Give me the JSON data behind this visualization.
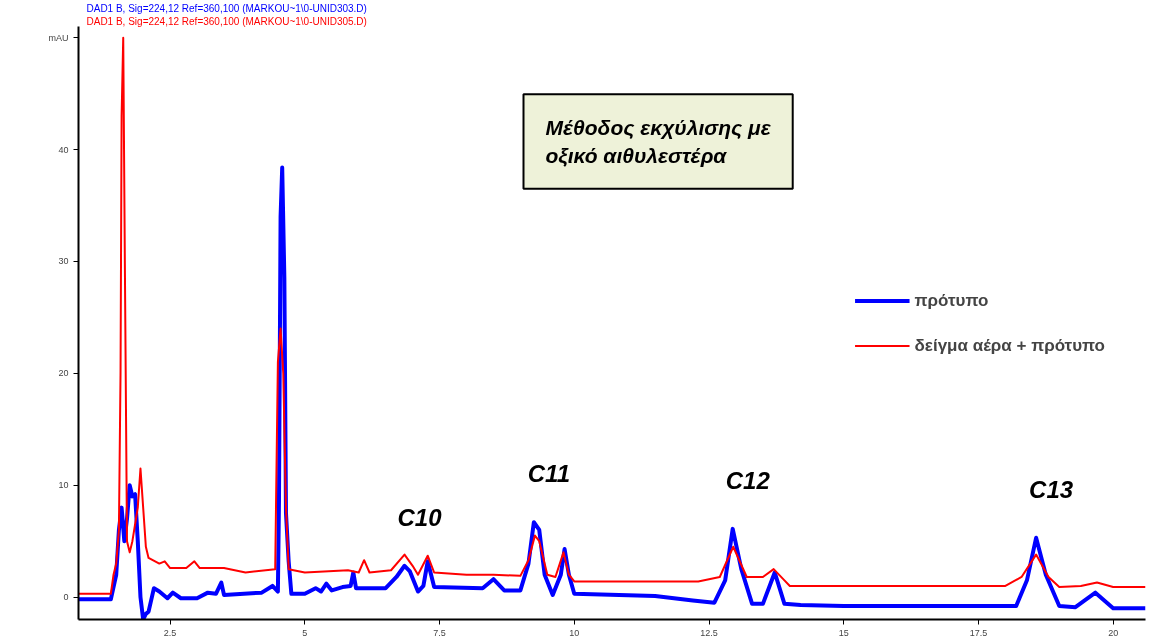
{
  "chart_data": {
    "type": "line",
    "title": "DAD1 B, Sig=224,12 Ref=360,100 (MARKOU~1\\0-UNID303.D)",
    "subtitle": "DAD1 B, Sig=224,12 Ref=360,100 (MARKOU~1\\0-UNID305.D)",
    "xlim": [
      0.8,
      20.6
    ],
    "xticks": [
      2.5,
      5,
      7.5,
      10,
      12.5,
      15,
      17.5,
      20
    ],
    "ylim": [
      -2,
      51
    ],
    "yticks": [
      0,
      10,
      20,
      30,
      40,
      {
        "value": 50,
        "label": "mAU"
      }
    ],
    "grid": false,
    "legend": "right",
    "line_style": "solid",
    "marker": "none",
    "annotations": [
      "Μέθοδος εκχύλισης με\nοξικό αιθυλεστέρα",
      {
        "text": "C10",
        "x": 6.85,
        "y": 2.8
      },
      {
        "text": "C11",
        "x": 9.25,
        "y": 6.7
      },
      {
        "text": "C12",
        "x": 12.94,
        "y": 6.1
      },
      {
        "text": "C13",
        "x": 18.57,
        "y": 5.3
      }
    ],
    "series": [
      {
        "name": "πρότυπο",
        "color": "#0000ff",
        "x": [
          0.8,
          1.4,
          1.5,
          1.55,
          1.6,
          1.65,
          1.7,
          1.75,
          1.8,
          1.85,
          1.9,
          1.95,
          2.0,
          2.05,
          2.1,
          2.2,
          2.3,
          2.45,
          2.55,
          2.7,
          3.0,
          3.2,
          3.35,
          3.45,
          3.5,
          4.2,
          4.4,
          4.5,
          4.52,
          4.55,
          4.58,
          4.62,
          4.65,
          4.7,
          4.75,
          5.0,
          5.2,
          5.3,
          5.4,
          5.5,
          5.7,
          5.85,
          5.9,
          5.95,
          6.5,
          6.7,
          6.85,
          6.95,
          7.1,
          7.2,
          7.28,
          7.4,
          8.3,
          8.5,
          8.7,
          9.0,
          9.15,
          9.25,
          9.35,
          9.45,
          9.6,
          9.75,
          9.82,
          9.9,
          10.0,
          11.5,
          12.2,
          12.6,
          12.8,
          12.94,
          13.1,
          13.3,
          13.5,
          13.72,
          13.9,
          14.2,
          15.0,
          18.2,
          18.4,
          18.57,
          18.75,
          19.0,
          19.3,
          19.67,
          20.0,
          20.6
        ],
        "values": [
          -0.2,
          -0.2,
          2,
          6,
          8,
          5,
          7,
          10,
          9,
          9.2,
          5,
          0,
          -2,
          -1.5,
          -1.3,
          0.8,
          0.5,
          -0.1,
          0.4,
          -0.1,
          -0.1,
          0.4,
          0.3,
          1.3,
          0.2,
          0.4,
          1.0,
          0.5,
          8.5,
          34,
          38.4,
          28.5,
          7.5,
          3.2,
          0.3,
          0.3,
          0.8,
          0.5,
          1.2,
          0.6,
          0.9,
          1.0,
          2.2,
          0.8,
          0.8,
          1.8,
          2.8,
          2.3,
          0.5,
          1,
          3.2,
          0.9,
          0.8,
          1.6,
          0.6,
          0.6,
          3,
          6.7,
          6,
          2,
          0.2,
          2,
          4.3,
          2,
          0.3,
          0.1,
          -0.3,
          -0.5,
          1.5,
          6.1,
          2.5,
          -0.6,
          -0.6,
          2.2,
          -0.6,
          -0.7,
          -0.8,
          -0.8,
          1.5,
          5.3,
          2.0,
          -0.8,
          -0.9,
          0.4,
          -1.0,
          -1.0
        ]
      },
      {
        "name": "δείγμα αέρα + πρότυπο",
        "color": "#ff0000",
        "x": [
          0.8,
          1.4,
          1.45,
          1.5,
          1.55,
          1.58,
          1.6,
          1.63,
          1.66,
          1.7,
          1.75,
          1.8,
          1.9,
          1.95,
          2.0,
          2.05,
          2.1,
          2.3,
          2.4,
          2.5,
          2.8,
          2.95,
          3.05,
          3.5,
          3.9,
          4.45,
          4.5,
          4.55,
          4.6,
          4.65,
          4.7,
          5.0,
          5.8,
          6.0,
          6.1,
          6.2,
          6.6,
          6.85,
          7.0,
          7.1,
          7.28,
          7.4,
          8.0,
          8.5,
          9.0,
          9.15,
          9.27,
          9.35,
          9.5,
          9.65,
          9.8,
          9.9,
          10.0,
          12.3,
          12.7,
          12.95,
          13.2,
          13.5,
          13.7,
          13.9,
          14.0,
          18.0,
          18.3,
          18.57,
          18.8,
          19.0,
          19.4,
          19.7,
          20.0,
          20.6
        ],
        "values": [
          0.3,
          0.3,
          2,
          3,
          6,
          20,
          43,
          50,
          30,
          5,
          4,
          5,
          8,
          11.5,
          8,
          4.5,
          3.5,
          3,
          3.2,
          2.6,
          2.6,
          3.2,
          2.6,
          2.6,
          2.2,
          2.5,
          21,
          24,
          20,
          8,
          2.5,
          2.2,
          2.4,
          2.2,
          3.3,
          2.2,
          2.4,
          3.8,
          2.8,
          2,
          3.7,
          2.2,
          2.0,
          2.0,
          1.9,
          3.3,
          5.5,
          5,
          2,
          1.8,
          4,
          2,
          1.4,
          1.4,
          1.8,
          4.5,
          1.8,
          1.8,
          2.5,
          1.5,
          1.0,
          1.0,
          1.8,
          3.8,
          1.8,
          0.9,
          1.0,
          1.3,
          0.9,
          0.9
        ]
      }
    ]
  }
}
